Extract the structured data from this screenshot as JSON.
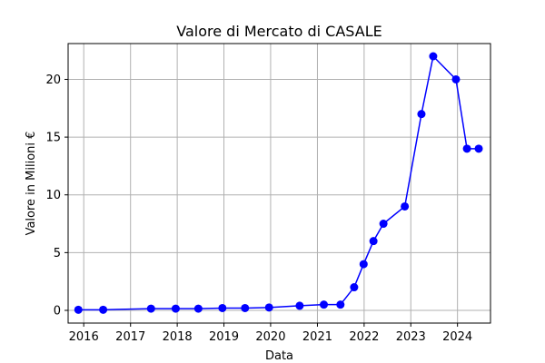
{
  "chart_data": {
    "type": "line",
    "title": "Valore di Mercato di CASALE",
    "xlabel": "Data",
    "ylabel": "Valore in Milioni €",
    "x_ticks": [
      "2016",
      "2017",
      "2018",
      "2019",
      "2020",
      "2021",
      "2022",
      "2023",
      "2024"
    ],
    "y_ticks": [
      0,
      5,
      10,
      15,
      20
    ],
    "xlim": [
      "2015-09-01",
      "2024-09-15"
    ],
    "ylim": [
      -1.1,
      23.1
    ],
    "grid": true,
    "line_color": "#0000ff",
    "marker": "circle",
    "series": [
      {
        "x": [
          "2015-11-20",
          "2016-06-01",
          "2017-06-10",
          "2017-12-20",
          "2018-06-15",
          "2018-12-20",
          "2019-06-15",
          "2019-12-20",
          "2020-08-15",
          "2021-02-20",
          "2021-06-30",
          "2021-10-15",
          "2021-12-28",
          "2022-03-15",
          "2022-06-01",
          "2022-11-15",
          "2023-03-25",
          "2023-06-25",
          "2023-12-20",
          "2024-03-15",
          "2024-06-15"
        ],
        "y": [
          0.05,
          0.05,
          0.15,
          0.15,
          0.15,
          0.2,
          0.2,
          0.25,
          0.4,
          0.5,
          0.5,
          2,
          4,
          6,
          7.5,
          9,
          17,
          22,
          20,
          14,
          14
        ]
      }
    ]
  }
}
